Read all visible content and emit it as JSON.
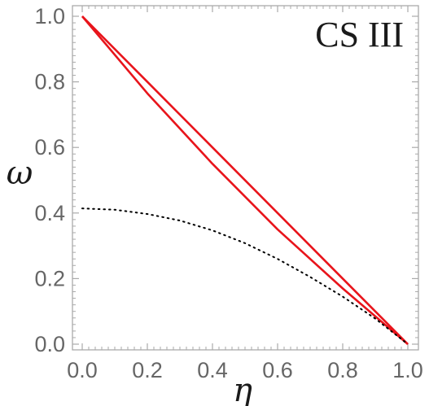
{
  "chart_data": {
    "type": "line",
    "title": "",
    "panel_label": "CS III",
    "xlabel": "η",
    "ylabel": "ω",
    "xlim": [
      0,
      1
    ],
    "ylim": [
      0,
      1
    ],
    "grid": false,
    "xticks": [
      "0.0",
      "0.2",
      "0.4",
      "0.6",
      "0.8",
      "1.0"
    ],
    "yticks": [
      "0.0",
      "0.2",
      "0.4",
      "0.6",
      "0.8",
      "1.0"
    ],
    "series": [
      {
        "style": "solid",
        "color": "#e8141b",
        "x": [
          0.0,
          0.2,
          0.4,
          0.6,
          0.8,
          1.0
        ],
        "y": [
          1.0,
          0.8,
          0.6,
          0.4,
          0.2,
          0.0
        ]
      },
      {
        "style": "solid",
        "color": "#e8141b",
        "x": [
          0.0,
          0.2,
          0.4,
          0.6,
          0.8,
          1.0
        ],
        "y": [
          1.0,
          0.765,
          0.55,
          0.35,
          0.17,
          0.0
        ]
      },
      {
        "style": "dotted",
        "color": "#000000",
        "x": [
          0.0,
          0.1,
          0.2,
          0.3,
          0.4,
          0.5,
          0.6,
          0.7,
          0.8,
          0.9,
          1.0
        ],
        "y": [
          0.414,
          0.41,
          0.397,
          0.377,
          0.347,
          0.308,
          0.26,
          0.205,
          0.145,
          0.078,
          0.0
        ]
      }
    ]
  }
}
